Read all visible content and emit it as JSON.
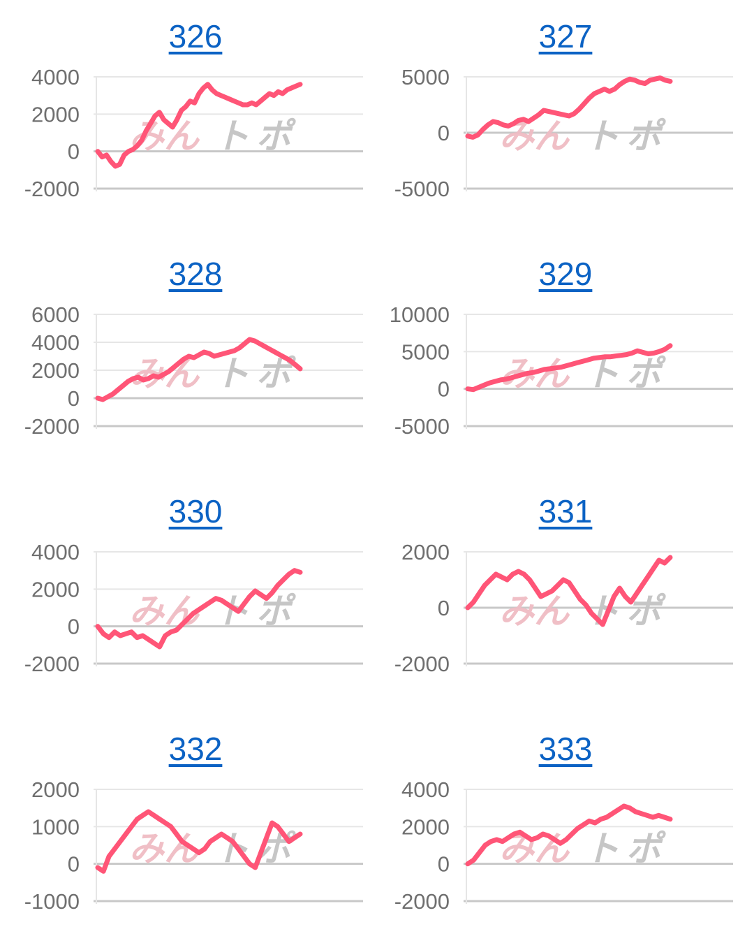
{
  "colors": {
    "line": "#ff5577",
    "link": "#0b62c4",
    "grid": "#e6e6e6",
    "axis": "#c8c8c8",
    "tick_text": "#6f6f6f",
    "watermark_pink": "#f0bcc4",
    "watermark_gray": "#c4c4c4"
  },
  "watermark": {
    "left": "みん",
    "right": "ト",
    "right2": "ポ"
  },
  "chart_data": [
    {
      "type": "line",
      "title": "326",
      "ylim": [
        -2000,
        4000
      ],
      "yticks": [
        4000,
        2000,
        0,
        -2000
      ],
      "grid": true,
      "series_color": "#ff5577",
      "values": [
        0,
        -300,
        -200,
        -550,
        -800,
        -700,
        -200,
        0,
        100,
        300,
        600,
        1100,
        1500,
        1900,
        2100,
        1700,
        1500,
        1300,
        1700,
        2200,
        2400,
        2700,
        2600,
        3100,
        3400,
        3600,
        3300,
        3100,
        3000,
        2900,
        2800,
        2700,
        2600,
        2500,
        2500,
        2600,
        2500,
        2700,
        2900,
        3100,
        3000,
        3200,
        3100,
        3300,
        3400,
        3500,
        3600
      ]
    },
    {
      "type": "line",
      "title": "327",
      "ylim": [
        -5000,
        5000
      ],
      "yticks": [
        5000,
        0,
        -5000
      ],
      "grid": true,
      "series_color": "#ff5577",
      "values": [
        -300,
        -400,
        -200,
        300,
        700,
        1000,
        900,
        700,
        600,
        800,
        1100,
        1200,
        1000,
        1300,
        1600,
        2000,
        1900,
        1800,
        1700,
        1600,
        1500,
        1700,
        2100,
        2600,
        3100,
        3500,
        3700,
        3900,
        3700,
        3900,
        4300,
        4600,
        4800,
        4700,
        4500,
        4400,
        4700,
        4800,
        4900,
        4700,
        4600
      ]
    },
    {
      "type": "line",
      "title": "328",
      "ylim": [
        -2000,
        6000
      ],
      "yticks": [
        6000,
        4000,
        2000,
        0,
        -2000
      ],
      "grid": true,
      "series_color": "#ff5577",
      "values": [
        0,
        -100,
        100,
        300,
        600,
        900,
        1200,
        1400,
        1500,
        1300,
        1400,
        1600,
        1500,
        1700,
        1900,
        2200,
        2500,
        2800,
        3000,
        2900,
        3100,
        3300,
        3200,
        3000,
        3100,
        3200,
        3300,
        3400,
        3600,
        3900,
        4200,
        4100,
        3900,
        3700,
        3500,
        3300,
        3100,
        2900,
        2700,
        2400,
        2100
      ]
    },
    {
      "type": "line",
      "title": "329",
      "ylim": [
        -5000,
        10000
      ],
      "yticks": [
        10000,
        5000,
        0,
        -5000
      ],
      "grid": true,
      "series_color": "#ff5577",
      "values": [
        0,
        -100,
        200,
        500,
        800,
        1000,
        1200,
        1300,
        1500,
        1700,
        1900,
        2100,
        2200,
        2400,
        2600,
        2700,
        2800,
        2900,
        3100,
        3300,
        3500,
        3700,
        3900,
        4100,
        4200,
        4300,
        4300,
        4400,
        4500,
        4600,
        4800,
        5100,
        4900,
        4700,
        4800,
        5000,
        5300,
        5800
      ]
    },
    {
      "type": "line",
      "title": "330",
      "ylim": [
        -2000,
        4000
      ],
      "yticks": [
        4000,
        2000,
        0,
        -2000
      ],
      "grid": true,
      "series_color": "#ff5577",
      "values": [
        0,
        -400,
        -600,
        -300,
        -500,
        -400,
        -300,
        -600,
        -500,
        -700,
        -900,
        -1100,
        -500,
        -300,
        -200,
        100,
        400,
        700,
        900,
        1100,
        1300,
        1500,
        1400,
        1200,
        1000,
        800,
        1200,
        1600,
        1900,
        1700,
        1500,
        1800,
        2200,
        2500,
        2800,
        3000,
        2900
      ]
    },
    {
      "type": "line",
      "title": "331",
      "ylim": [
        -2000,
        2000
      ],
      "yticks": [
        2000,
        0,
        -2000
      ],
      "grid": true,
      "series_color": "#ff5577",
      "values": [
        0,
        200,
        500,
        800,
        1000,
        1200,
        1100,
        1000,
        1200,
        1300,
        1200,
        1000,
        700,
        400,
        500,
        600,
        800,
        1000,
        900,
        600,
        300,
        100,
        -200,
        -400,
        -600,
        -100,
        400,
        700,
        400,
        200,
        500,
        800,
        1100,
        1400,
        1700,
        1600,
        1800
      ]
    },
    {
      "type": "line",
      "title": "332",
      "ylim": [
        -1000,
        2000
      ],
      "yticks": [
        2000,
        1000,
        0,
        -1000
      ],
      "grid": true,
      "series_color": "#ff5577",
      "values": [
        -100,
        -200,
        200,
        400,
        600,
        800,
        1000,
        1200,
        1300,
        1400,
        1300,
        1200,
        1100,
        1000,
        800,
        600,
        500,
        400,
        300,
        400,
        600,
        700,
        800,
        700,
        600,
        400,
        200,
        0,
        -100,
        300,
        700,
        1100,
        1000,
        800,
        600,
        700,
        800
      ]
    },
    {
      "type": "line",
      "title": "333",
      "ylim": [
        -2000,
        4000
      ],
      "yticks": [
        4000,
        2000,
        0,
        -2000
      ],
      "grid": true,
      "series_color": "#ff5577",
      "values": [
        0,
        200,
        600,
        1000,
        1200,
        1300,
        1200,
        1400,
        1600,
        1700,
        1500,
        1300,
        1400,
        1600,
        1500,
        1300,
        1100,
        1300,
        1600,
        1900,
        2100,
        2300,
        2200,
        2400,
        2500,
        2700,
        2900,
        3100,
        3000,
        2800,
        2700,
        2600,
        2500,
        2600,
        2500,
        2400
      ]
    }
  ]
}
